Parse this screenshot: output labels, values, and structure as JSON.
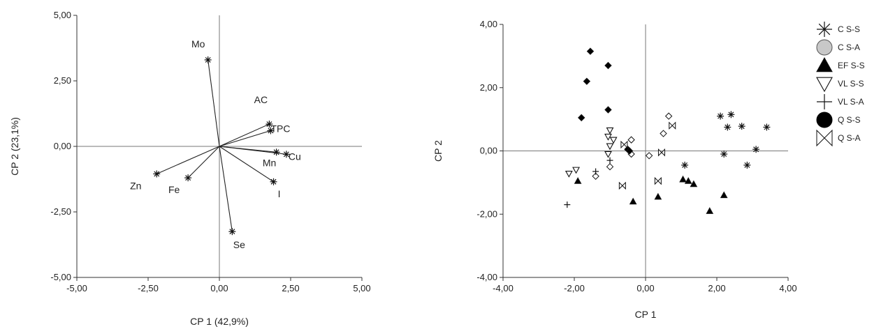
{
  "chart_data": [
    {
      "type": "biplot-loadings",
      "xlabel": "CP 1 (42,9%)",
      "ylabel": "CP 2 (23,1%)",
      "xlim": [
        -5,
        5
      ],
      "ylim": [
        -5,
        5
      ],
      "xticks": [
        "-5,00",
        "-2,50",
        "0,00",
        "2,50",
        "5,00"
      ],
      "yticks": [
        "5,00",
        "2,50",
        "0,00",
        "-2,50",
        "-5,00"
      ],
      "vectors": [
        {
          "label": "Mo",
          "x": -0.4,
          "y": 3.3
        },
        {
          "label": "AC",
          "x": 1.75,
          "y": 0.85
        },
        {
          "label": "TPC",
          "x": 1.8,
          "y": 0.6
        },
        {
          "label": "Cu",
          "x": 2.35,
          "y": -0.3
        },
        {
          "label": "Mn",
          "x": 2.0,
          "y": -0.22
        },
        {
          "label": "I",
          "x": 1.9,
          "y": -1.35
        },
        {
          "label": "Se",
          "x": 0.45,
          "y": -3.25
        },
        {
          "label": "Fe",
          "x": -1.1,
          "y": -1.2
        },
        {
          "label": "Zn",
          "x": -2.2,
          "y": -1.05
        }
      ]
    },
    {
      "type": "scatter",
      "xlabel": "CP 1",
      "ylabel": "CP 2",
      "xlim": [
        -4,
        4
      ],
      "ylim": [
        -4,
        4
      ],
      "xticks": [
        "-4,00",
        "-2,00",
        "0,00",
        "2,00",
        "4,00"
      ],
      "yticks": [
        "4,00",
        "2,00",
        "0,00",
        "-2,00",
        "-4,00"
      ],
      "legend_position": "right",
      "series": [
        {
          "name": "C S-S",
          "marker": "asterisk",
          "points": [
            [
              2.1,
              1.1
            ],
            [
              2.4,
              1.15
            ],
            [
              2.3,
              0.75
            ],
            [
              2.7,
              0.78
            ],
            [
              3.4,
              0.75
            ],
            [
              3.1,
              0.05
            ],
            [
              2.2,
              -0.1
            ],
            [
              2.85,
              -0.45
            ],
            [
              1.1,
              -0.45
            ]
          ]
        },
        {
          "name": "C S-A",
          "marker": "diamond-open",
          "points": [
            [
              0.65,
              1.1
            ],
            [
              0.5,
              0.55
            ],
            [
              0.1,
              -0.15
            ],
            [
              -0.4,
              0.35
            ],
            [
              -0.5,
              0.05
            ],
            [
              -0.4,
              -0.1
            ],
            [
              -1.0,
              -0.5
            ],
            [
              -1.4,
              -0.8
            ]
          ]
        },
        {
          "name": "EF S-S",
          "marker": "triangle-up-filled",
          "points": [
            [
              -1.9,
              -0.95
            ],
            [
              -0.35,
              -1.6
            ],
            [
              0.35,
              -1.45
            ],
            [
              1.05,
              -0.9
            ],
            [
              1.2,
              -0.95
            ],
            [
              1.35,
              -1.05
            ],
            [
              1.8,
              -1.9
            ],
            [
              2.2,
              -1.4
            ]
          ]
        },
        {
          "name": "VL S-S",
          "marker": "triangle-down-open",
          "points": [
            [
              -2.15,
              -0.72
            ],
            [
              -1.95,
              -0.6
            ],
            [
              -1.0,
              0.65
            ],
            [
              -1.05,
              0.45
            ],
            [
              -0.9,
              0.35
            ],
            [
              -1.0,
              0.15
            ],
            [
              -1.05,
              -0.1
            ]
          ]
        },
        {
          "name": "VL S-A",
          "marker": "plus",
          "points": [
            [
              -1.4,
              -0.65
            ],
            [
              -1.0,
              -0.3
            ],
            [
              -2.2,
              -1.7
            ]
          ]
        },
        {
          "name": "Q S-S",
          "marker": "diamond-filled",
          "points": [
            [
              -1.55,
              3.15
            ],
            [
              -1.05,
              2.7
            ],
            [
              -1.65,
              2.2
            ],
            [
              -1.05,
              1.3
            ],
            [
              -1.8,
              1.05
            ],
            [
              -0.5,
              0.05
            ],
            [
              -0.45,
              0.0
            ]
          ]
        },
        {
          "name": "Q S-A",
          "marker": "bowtie",
          "points": [
            [
              0.75,
              0.8
            ],
            [
              0.45,
              -0.05
            ],
            [
              0.35,
              -0.95
            ],
            [
              -0.65,
              -1.1
            ],
            [
              -0.6,
              0.2
            ]
          ]
        }
      ]
    }
  ]
}
